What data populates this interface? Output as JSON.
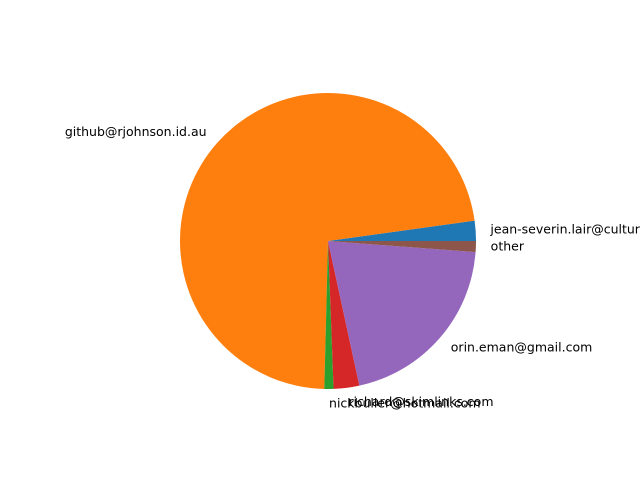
{
  "chart_data": {
    "type": "pie",
    "start_angle_deg": 0,
    "direction": "counterclockwise",
    "slices": [
      {
        "label": "jean-severin.lair@cultur",
        "value": 2.2,
        "color": "#1f77b4"
      },
      {
        "label": "github@rjohnson.id.au",
        "value": 72.4,
        "color": "#ff7f0e"
      },
      {
        "label": "nickbuller@hotmail.com",
        "value": 1.0,
        "color": "#2ca02c"
      },
      {
        "label": "richard@skimlinks.com",
        "value": 2.8,
        "color": "#d62728"
      },
      {
        "label": "orin.eman@gmail.com",
        "value": 20.4,
        "color": "#9467bd"
      },
      {
        "label": "other",
        "value": 1.2,
        "color": "#8c564b"
      }
    ]
  }
}
